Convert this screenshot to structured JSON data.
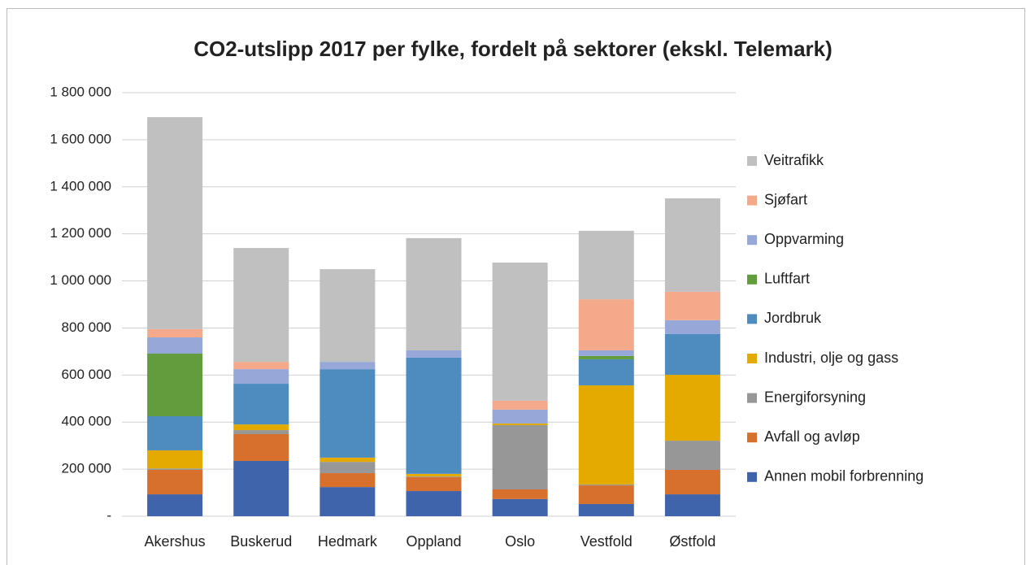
{
  "chart_data": {
    "type": "stacked_bar",
    "title": "CO2-utslipp 2017 per fylke, fordelt på sektorer (ekskl. Telemark)",
    "categories": [
      "Akershus",
      "Buskerud",
      "Hedmark",
      "Oppland",
      "Oslo",
      "Vestfold",
      "Østfold"
    ],
    "series": [
      {
        "name": "Annen mobil forbrenning",
        "color": "#4064ac",
        "values": [
          93000,
          235000,
          124000,
          107000,
          73000,
          52000,
          93000
        ]
      },
      {
        "name": "Avfall og avløp",
        "color": "#d7702c",
        "values": [
          104000,
          114000,
          59000,
          59000,
          41000,
          79000,
          104000
        ]
      },
      {
        "name": "Energiforsyning",
        "color": "#979797",
        "values": [
          6000,
          17000,
          48000,
          3000,
          273000,
          4000,
          124000
        ]
      },
      {
        "name": "Industri, olje og gass",
        "color": "#e4aa00",
        "values": [
          77000,
          24000,
          18000,
          11000,
          7000,
          421000,
          280000
        ]
      },
      {
        "name": "Jordbruk",
        "color": "#4e8cc0",
        "values": [
          145000,
          173000,
          376000,
          494000,
          0,
          111000,
          173000
        ]
      },
      {
        "name": "Luftfart",
        "color": "#629c3c",
        "values": [
          266000,
          0,
          0,
          0,
          0,
          14000,
          0
        ]
      },
      {
        "name": "Oppvarming",
        "color": "#97a8d8",
        "values": [
          69000,
          62000,
          31000,
          31000,
          59000,
          24000,
          59000
        ]
      },
      {
        "name": "Sjøfart",
        "color": "#f3a98a",
        "values": [
          35000,
          31000,
          0,
          0,
          38000,
          217000,
          121000
        ]
      },
      {
        "name": "Veitrafikk",
        "color": "#c0c0c0",
        "values": [
          901000,
          484000,
          394000,
          477000,
          587000,
          291000,
          397000
        ]
      }
    ],
    "ylim": [
      0,
      1800000
    ],
    "yticks": [
      {
        "value": 0,
        "label": "-"
      },
      {
        "value": 200000,
        "label": "200 000"
      },
      {
        "value": 400000,
        "label": "400 000"
      },
      {
        "value": 600000,
        "label": "600 000"
      },
      {
        "value": 800000,
        "label": "800 000"
      },
      {
        "value": 1000000,
        "label": "1 000 000"
      },
      {
        "value": 1200000,
        "label": "1 200 000"
      },
      {
        "value": 1400000,
        "label": "1 400 000"
      },
      {
        "value": 1600000,
        "label": "1 600 000"
      },
      {
        "value": 1800000,
        "label": "1 800 000"
      }
    ],
    "grid": true,
    "legend": "right"
  }
}
